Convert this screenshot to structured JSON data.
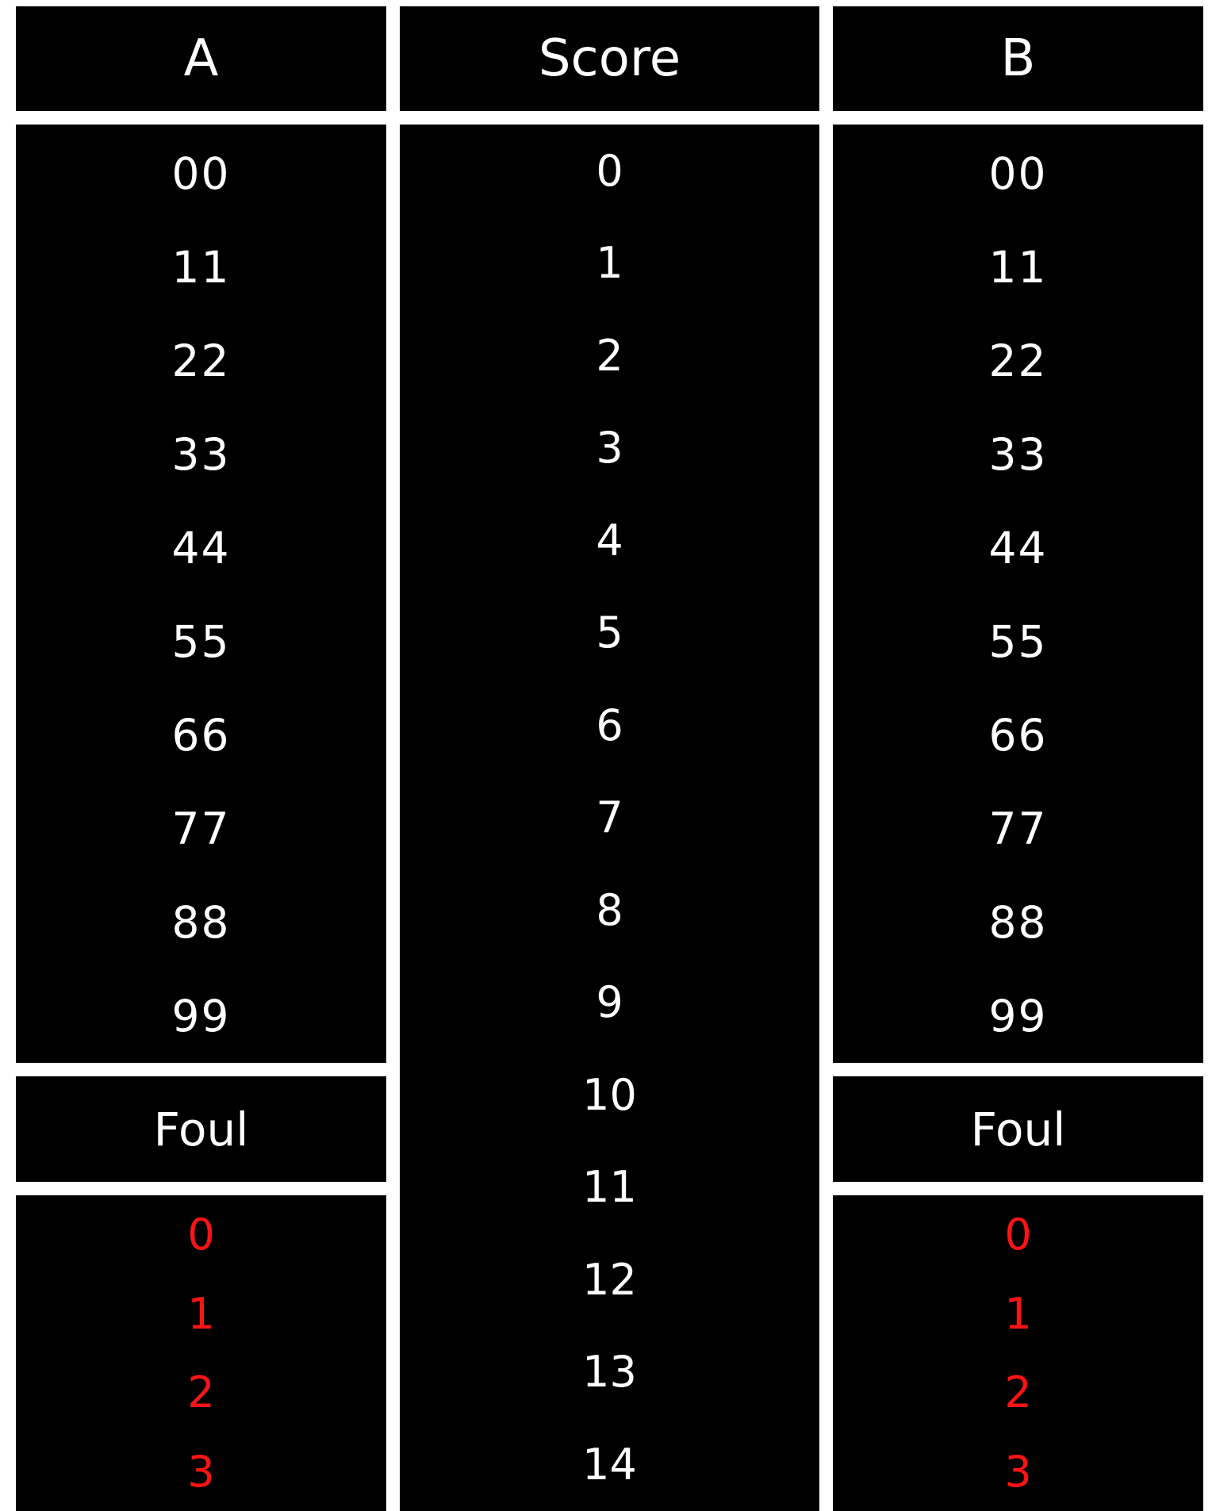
{
  "colors": {
    "background": "#ffffff",
    "panel": "#000000",
    "text": "#ffffff",
    "foul_value": "#ff1414"
  },
  "team_a": {
    "title": "A",
    "picker_values": [
      "00",
      "11",
      "22",
      "33",
      "44",
      "55",
      "66",
      "77",
      "88",
      "99"
    ],
    "foul_label": "Foul",
    "foul_values": [
      "0",
      "1",
      "2",
      "3"
    ]
  },
  "score": {
    "title": "Score",
    "values": [
      "0",
      "1",
      "2",
      "3",
      "4",
      "5",
      "6",
      "7",
      "8",
      "9",
      "10",
      "11",
      "12",
      "13",
      "14"
    ]
  },
  "team_b": {
    "title": "B",
    "picker_values": [
      "00",
      "11",
      "22",
      "33",
      "44",
      "55",
      "66",
      "77",
      "88",
      "99"
    ],
    "foul_label": "Foul",
    "foul_values": [
      "0",
      "1",
      "2",
      "3"
    ]
  }
}
